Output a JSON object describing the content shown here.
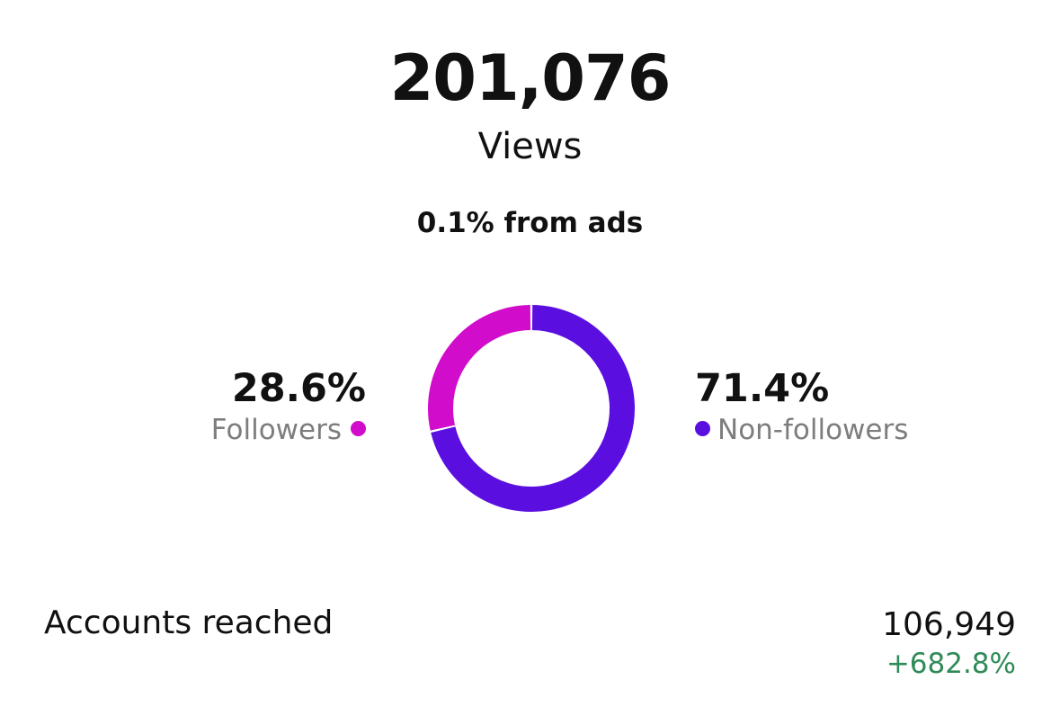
{
  "header": {
    "total_views": "201,076",
    "views_label": "Views",
    "ads_note": "0.1% from ads"
  },
  "audience": {
    "followers": {
      "percent": "28.6%",
      "label": "Followers",
      "value": 28.6,
      "color": "#d10ccb"
    },
    "non_followers": {
      "percent": "71.4%",
      "label": "Non-followers",
      "value": 71.4,
      "color": "#5a0fe0"
    }
  },
  "reach": {
    "label": "Accounts reached",
    "value": "106,949",
    "change": "+682.8%",
    "change_color": "#2e8b57"
  }
}
